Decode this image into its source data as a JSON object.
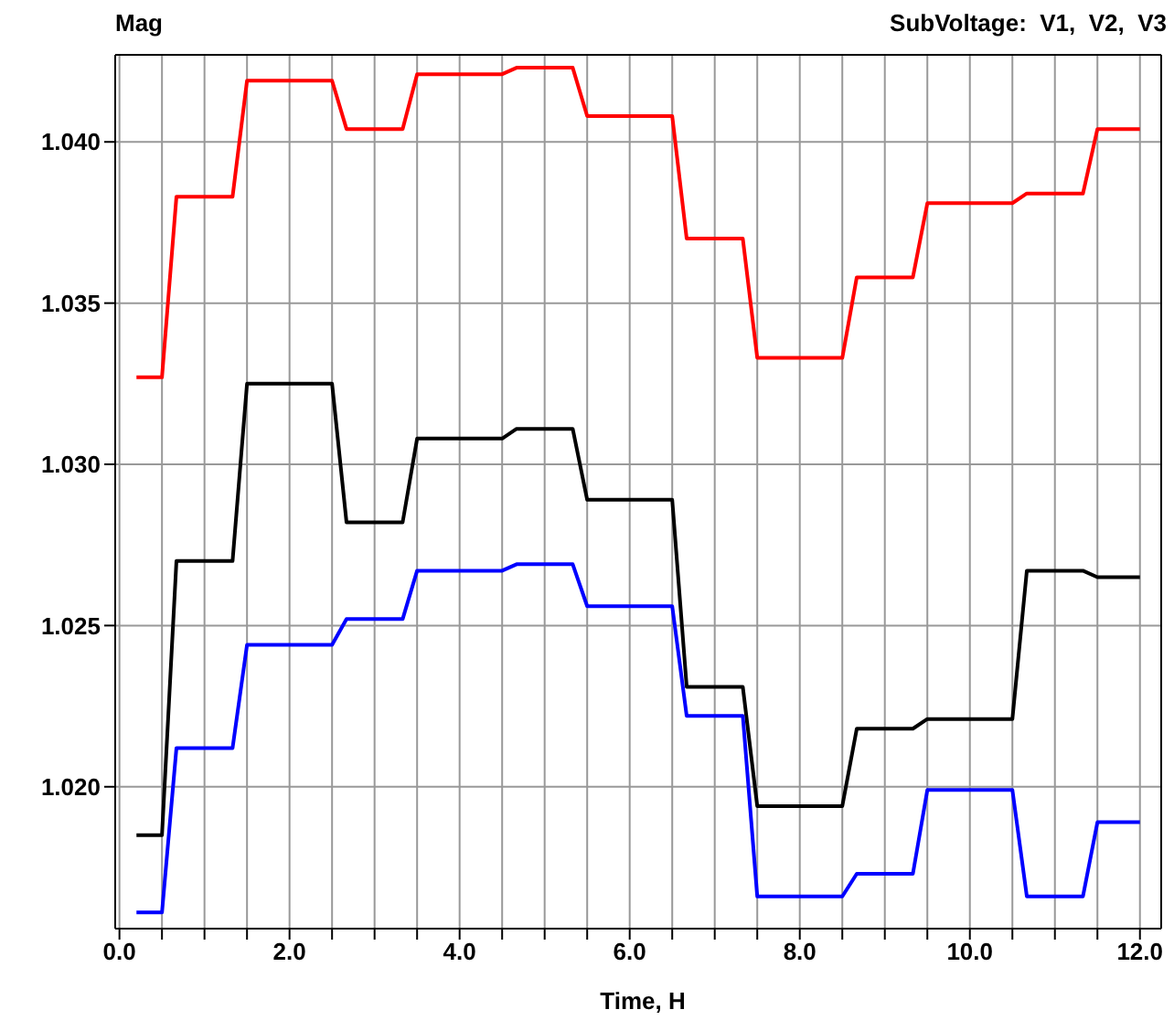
{
  "chart_data": {
    "type": "line",
    "title": "SubVoltage:  V1,  V2,  V3",
    "ylabel": "Mag",
    "xlabel": "Time, H",
    "x": [
      0.2,
      0.5,
      0.67,
      1.33,
      1.5,
      2.5,
      2.67,
      3.33,
      3.5,
      4.5,
      4.67,
      5.33,
      5.5,
      6.5,
      6.67,
      7.33,
      7.5,
      8.5,
      8.67,
      9.33,
      9.5,
      10.5,
      10.67,
      11.33,
      11.5,
      12.0
    ],
    "series": [
      {
        "color": "#ff0000",
        "values": [
          1.0327,
          1.0327,
          1.0383,
          1.0383,
          1.0419,
          1.0419,
          1.0404,
          1.0404,
          1.0421,
          1.0421,
          1.0423,
          1.0423,
          1.0408,
          1.0408,
          1.037,
          1.037,
          1.0333,
          1.0333,
          1.0358,
          1.0358,
          1.0381,
          1.0381,
          1.0384,
          1.0384,
          1.0404,
          1.0404
        ]
      },
      {
        "color": "#000000",
        "values": [
          1.0185,
          1.0185,
          1.027,
          1.027,
          1.0325,
          1.0325,
          1.0282,
          1.0282,
          1.0308,
          1.0308,
          1.0311,
          1.0311,
          1.0289,
          1.0289,
          1.0231,
          1.0231,
          1.0194,
          1.0194,
          1.0218,
          1.0218,
          1.0221,
          1.0221,
          1.0267,
          1.0267,
          1.0265,
          1.0265
        ]
      },
      {
        "color": "#0000ff",
        "values": [
          1.0161,
          1.0161,
          1.0212,
          1.0212,
          1.0244,
          1.0244,
          1.0252,
          1.0252,
          1.0267,
          1.0267,
          1.0269,
          1.0269,
          1.0256,
          1.0256,
          1.0222,
          1.0222,
          1.0166,
          1.0166,
          1.0173,
          1.0173,
          1.0199,
          1.0199,
          1.0166,
          1.0166,
          1.0189,
          1.0189
        ]
      }
    ],
    "xlim": [
      -0.05,
      12.25
    ],
    "xticks": [
      {
        "value": 0,
        "label": "0.0"
      },
      {
        "value": 0.5,
        "label": null
      },
      {
        "value": 1,
        "label": null
      },
      {
        "value": 1.5,
        "label": null
      },
      {
        "value": 2,
        "label": "2.0"
      },
      {
        "value": 2.5,
        "label": null
      },
      {
        "value": 3,
        "label": null
      },
      {
        "value": 3.5,
        "label": null
      },
      {
        "value": 4,
        "label": "4.0"
      },
      {
        "value": 4.5,
        "label": null
      },
      {
        "value": 5,
        "label": null
      },
      {
        "value": 5.5,
        "label": null
      },
      {
        "value": 6,
        "label": "6.0"
      },
      {
        "value": 6.5,
        "label": null
      },
      {
        "value": 7,
        "label": null
      },
      {
        "value": 7.5,
        "label": null
      },
      {
        "value": 8,
        "label": "8.0"
      },
      {
        "value": 8.5,
        "label": null
      },
      {
        "value": 9,
        "label": null
      },
      {
        "value": 9.5,
        "label": null
      },
      {
        "value": 10,
        "label": "10.0"
      },
      {
        "value": 10.5,
        "label": null
      },
      {
        "value": 11,
        "label": null
      },
      {
        "value": 11.5,
        "label": null
      },
      {
        "value": 12,
        "label": "12.0"
      }
    ],
    "ylim": [
      1.0156,
      1.0427
    ],
    "yticks": [
      {
        "value": 1.02,
        "label": "1.020"
      },
      {
        "value": 1.025,
        "label": "1.025"
      },
      {
        "value": 1.03,
        "label": "1.030"
      },
      {
        "value": 1.035,
        "label": "1.035"
      },
      {
        "value": 1.04,
        "label": "1.040"
      }
    ],
    "grid": true,
    "marker": "none",
    "line_style": "solid"
  }
}
